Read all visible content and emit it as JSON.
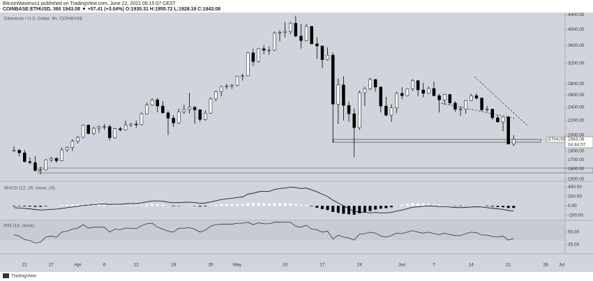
{
  "header": {
    "author_line": "BitcoinMaximus1 published on TradingView.com, June 22, 2021 09:15:07 CEST",
    "symbol_line": "COINBASE:ETHUSD, 360  1943.08 ▼ +57.41 (+3.04%) O:1930.31 H:1955.72 L:1928.19 C:1943.08"
  },
  "footer": {
    "brand": "TradingView"
  },
  "chart_data": [
    {
      "type": "candlestick",
      "title": "Ethereum / U.S. Dollar, 6h, COINBASE",
      "symbol": "ETHUSD",
      "countdown": "04:44:57",
      "log_scale": true,
      "grid": false,
      "up_color": "#ffffff",
      "down_color": "#000000",
      "wick_color": "#000000",
      "categories": [
        null,
        null,
        "22",
        null,
        null,
        null,
        null,
        "27",
        null,
        null,
        null,
        null,
        "Apr",
        null,
        null,
        null,
        null,
        "6",
        null,
        null,
        null,
        null,
        null,
        "12",
        null,
        null,
        null,
        null,
        null,
        null,
        "19",
        null,
        null,
        null,
        null,
        null,
        null,
        "26",
        null,
        null,
        null,
        null,
        "May",
        null,
        null,
        null,
        null,
        null,
        null,
        null,
        null,
        "10",
        null,
        null,
        null,
        null,
        null,
        null,
        "17",
        null,
        null,
        null,
        null,
        null,
        null,
        "24",
        null,
        null,
        null,
        null,
        null,
        null,
        null,
        "Jun",
        null,
        null,
        null,
        null,
        null,
        "7",
        null,
        null,
        null,
        null,
        null,
        null,
        "14",
        null,
        null,
        null,
        null,
        null,
        null,
        "21",
        null,
        null,
        null,
        null,
        null,
        null,
        "28",
        null,
        null,
        "Jul"
      ],
      "open": [
        1800,
        1810,
        1780,
        1680,
        1670,
        1585,
        1590,
        1700,
        1715,
        1690,
        1815,
        1845,
        1920,
        1970,
        2135,
        2020,
        2090,
        2110,
        2115,
        1965,
        2085,
        2070,
        2135,
        2150,
        2140,
        2300,
        2435,
        2520,
        2420,
        2315,
        2235,
        2165,
        2330,
        2365,
        2400,
        2360,
        2215,
        2310,
        2535,
        2660,
        2750,
        2755,
        2775,
        2945,
        2950,
        3430,
        3240,
        3525,
        3490,
        3490,
        3905,
        3925,
        3950,
        4170,
        3830,
        3720,
        4080,
        3640,
        3590,
        3280,
        3380,
        2450,
        2780,
        2430,
        2300,
        2100,
        2640,
        2710,
        2880,
        2740,
        2420,
        2280,
        2390,
        2630,
        2590,
        2710,
        2860,
        2690,
        2630,
        2715,
        2590,
        2520,
        2610,
        2470,
        2370,
        2370,
        2510,
        2590,
        2550,
        2360,
        2370,
        2240,
        2180,
        2250,
        1885,
        null,
        null,
        null,
        null,
        null,
        null,
        null,
        null,
        null
      ],
      "high": [
        1860,
        1825,
        1815,
        1725,
        1740,
        1625,
        1710,
        1735,
        1730,
        1840,
        1860,
        1945,
        1990,
        2145,
        2145,
        2110,
        2130,
        2150,
        2140,
        2100,
        2110,
        2200,
        2165,
        2200,
        2320,
        2480,
        2545,
        2550,
        2500,
        2340,
        2280,
        2380,
        2440,
        2640,
        2420,
        2370,
        2350,
        2560,
        2680,
        2760,
        2800,
        2800,
        2950,
        2990,
        3450,
        3530,
        3540,
        3610,
        3580,
        3950,
        3980,
        4200,
        4200,
        4380,
        4140,
        4150,
        4100,
        3800,
        3590,
        3560,
        3440,
        2900,
        2940,
        2490,
        2380,
        2680,
        2750,
        2910,
        2890,
        2760,
        2570,
        2450,
        2660,
        2740,
        2720,
        2890,
        2860,
        2820,
        2750,
        2840,
        2620,
        2620,
        2620,
        2500,
        2420,
        2520,
        2620,
        2630,
        2560,
        2420,
        2380,
        2280,
        2250,
        2270,
        2000,
        null,
        null,
        null,
        null,
        null,
        null,
        null,
        null,
        null
      ],
      "low": [
        1790,
        1740,
        1670,
        1650,
        1575,
        1545,
        1585,
        1675,
        1665,
        1685,
        1790,
        1800,
        1890,
        1960,
        2010,
        2000,
        2030,
        2070,
        1930,
        1955,
        2050,
        2060,
        2110,
        2100,
        2130,
        2290,
        2420,
        2320,
        2300,
        2000,
        2110,
        2150,
        2300,
        2300,
        2150,
        2180,
        2200,
        2300,
        2500,
        2580,
        2700,
        2710,
        2760,
        2860,
        2940,
        3150,
        3220,
        3400,
        3390,
        3470,
        3700,
        3800,
        3880,
        3800,
        3530,
        3700,
        3630,
        3300,
        3100,
        3260,
        1900,
        2150,
        2200,
        2180,
        1730,
        2070,
        2420,
        2690,
        2660,
        2320,
        2260,
        2180,
        2310,
        2530,
        2580,
        2670,
        2580,
        2560,
        2620,
        2580,
        2320,
        2440,
        2440,
        2330,
        2270,
        2300,
        2500,
        2520,
        2340,
        2330,
        2210,
        2170,
        2050,
        1880,
        1860,
        null,
        null,
        null,
        null,
        null,
        null,
        null,
        null,
        null
      ],
      "close": [
        1810,
        1780,
        1680,
        1670,
        1585,
        1590,
        1700,
        1715,
        1690,
        1815,
        1845,
        1920,
        1970,
        2135,
        2020,
        2090,
        2110,
        2115,
        1965,
        2085,
        2070,
        2135,
        2150,
        2140,
        2300,
        2435,
        2520,
        2420,
        2315,
        2235,
        2165,
        2330,
        2365,
        2400,
        2360,
        2215,
        2310,
        2535,
        2660,
        2750,
        2755,
        2775,
        2945,
        2950,
        3430,
        3240,
        3525,
        3490,
        3490,
        3905,
        3925,
        3950,
        4170,
        3830,
        3720,
        4080,
        3640,
        3590,
        3280,
        3380,
        2450,
        2780,
        2430,
        2300,
        2100,
        2640,
        2710,
        2880,
        2740,
        2420,
        2280,
        2390,
        2630,
        2590,
        2710,
        2860,
        2690,
        2630,
        2715,
        2590,
        2520,
        2610,
        2470,
        2370,
        2370,
        2510,
        2590,
        2550,
        2360,
        2370,
        2240,
        2180,
        2250,
        1885,
        1943.08,
        null,
        null,
        null,
        null,
        null,
        null,
        null,
        null,
        null
      ],
      "ylim": [
        1490,
        4470
      ],
      "yticks": [
        {
          "value": 4400,
          "label": "4400.00"
        },
        {
          "value": 4000,
          "label": "4000.00"
        },
        {
          "value": 3600,
          "label": "3600.00"
        },
        {
          "value": 3200,
          "label": "3200.00"
        },
        {
          "value": 2800,
          "label": "2800.00"
        },
        {
          "value": 2600,
          "label": "2600.00"
        },
        {
          "value": 2400,
          "label": "2400.00"
        },
        {
          "value": 2200,
          "label": "2200.00"
        },
        {
          "value": 2000,
          "label": "2000.00"
        },
        {
          "value": 1800,
          "label": "1800.00"
        },
        {
          "value": 1700,
          "label": "1700.00"
        },
        {
          "value": 1600,
          "label": "1600.00"
        },
        {
          "value": 1500,
          "label": "1500.00"
        }
      ]
    },
    {
      "type": "macd",
      "title": "MACD (12, 26, close, 24)",
      "grid": false,
      "color": "#000000",
      "hist_up_color": "#ffffff",
      "hist_down_color": "#000000",
      "values": [
        -40,
        -45,
        -55,
        -65,
        -80,
        -90,
        -85,
        -75,
        -70,
        -55,
        -40,
        -25,
        -10,
        10,
        15,
        25,
        35,
        40,
        30,
        35,
        35,
        45,
        50,
        50,
        65,
        85,
        105,
        105,
        100,
        80,
        65,
        70,
        75,
        80,
        70,
        55,
        60,
        85,
        110,
        135,
        150,
        160,
        180,
        190,
        250,
        270,
        300,
        310,
        310,
        350,
        370,
        380,
        400,
        390,
        370,
        380,
        340,
        300,
        250,
        200,
        120,
        60,
        0,
        -60,
        -120,
        -130,
        -140,
        -150,
        -140,
        -150,
        -150,
        -140,
        -110,
        -90,
        -60,
        -30,
        -20,
        -10,
        0,
        -5,
        -15,
        -15,
        -25,
        -35,
        -40,
        -35,
        -25,
        -20,
        -25,
        -40,
        -50,
        -65,
        -75,
        -100,
        -110
      ],
      "histogram": [
        -10,
        -8,
        -12,
        -15,
        -20,
        -20,
        -10,
        0,
        5,
        15,
        25,
        30,
        35,
        40,
        35,
        35,
        30,
        25,
        10,
        10,
        8,
        12,
        12,
        10,
        18,
        30,
        40,
        35,
        25,
        5,
        -10,
        -5,
        0,
        5,
        -5,
        -15,
        -10,
        10,
        25,
        35,
        40,
        35,
        40,
        35,
        60,
        60,
        65,
        55,
        45,
        60,
        60,
        55,
        55,
        40,
        20,
        20,
        -10,
        -40,
        -70,
        -90,
        -130,
        -150,
        -170,
        -180,
        -190,
        -160,
        -130,
        -110,
        -80,
        -60,
        -50,
        -30,
        0,
        25,
        45,
        60,
        55,
        50,
        45,
        30,
        15,
        10,
        0,
        -5,
        -8,
        -3,
        5,
        8,
        3,
        -10,
        -15,
        -25,
        -30,
        -45,
        -45
      ],
      "ylim": [
        -280,
        480
      ],
      "yticks": [
        {
          "value": 400,
          "label": "400.00"
        },
        {
          "value": 200,
          "label": "200.00"
        },
        {
          "value": 0,
          "label": "0.00"
        },
        {
          "value": -200,
          "label": "-200.00"
        }
      ]
    },
    {
      "type": "line",
      "title": "RSI (14, close)",
      "grid": false,
      "color": "#333333",
      "values": [
        45,
        42,
        35,
        33,
        28,
        30,
        40,
        42,
        40,
        50,
        52,
        56,
        58,
        65,
        58,
        60,
        60,
        60,
        50,
        56,
        55,
        58,
        58,
        57,
        63,
        67,
        68,
        60,
        56,
        52,
        50,
        58,
        58,
        59,
        56,
        50,
        54,
        62,
        65,
        66,
        66,
        66,
        68,
        68,
        70,
        65,
        69,
        67,
        67,
        70,
        70,
        70,
        70,
        62,
        60,
        64,
        56,
        55,
        50,
        52,
        36,
        44,
        40,
        38,
        34,
        46,
        47,
        50,
        48,
        42,
        40,
        43,
        48,
        47,
        50,
        53,
        50,
        48,
        50,
        47,
        45,
        48,
        45,
        43,
        43,
        47,
        50,
        49,
        44,
        44,
        41,
        40,
        42,
        34,
        37
      ],
      "ylim": [
        9,
        71
      ],
      "yticks": [
        {
          "value": 50,
          "label": "50.00"
        },
        {
          "value": 25,
          "label": "25.00"
        }
      ]
    }
  ]
}
